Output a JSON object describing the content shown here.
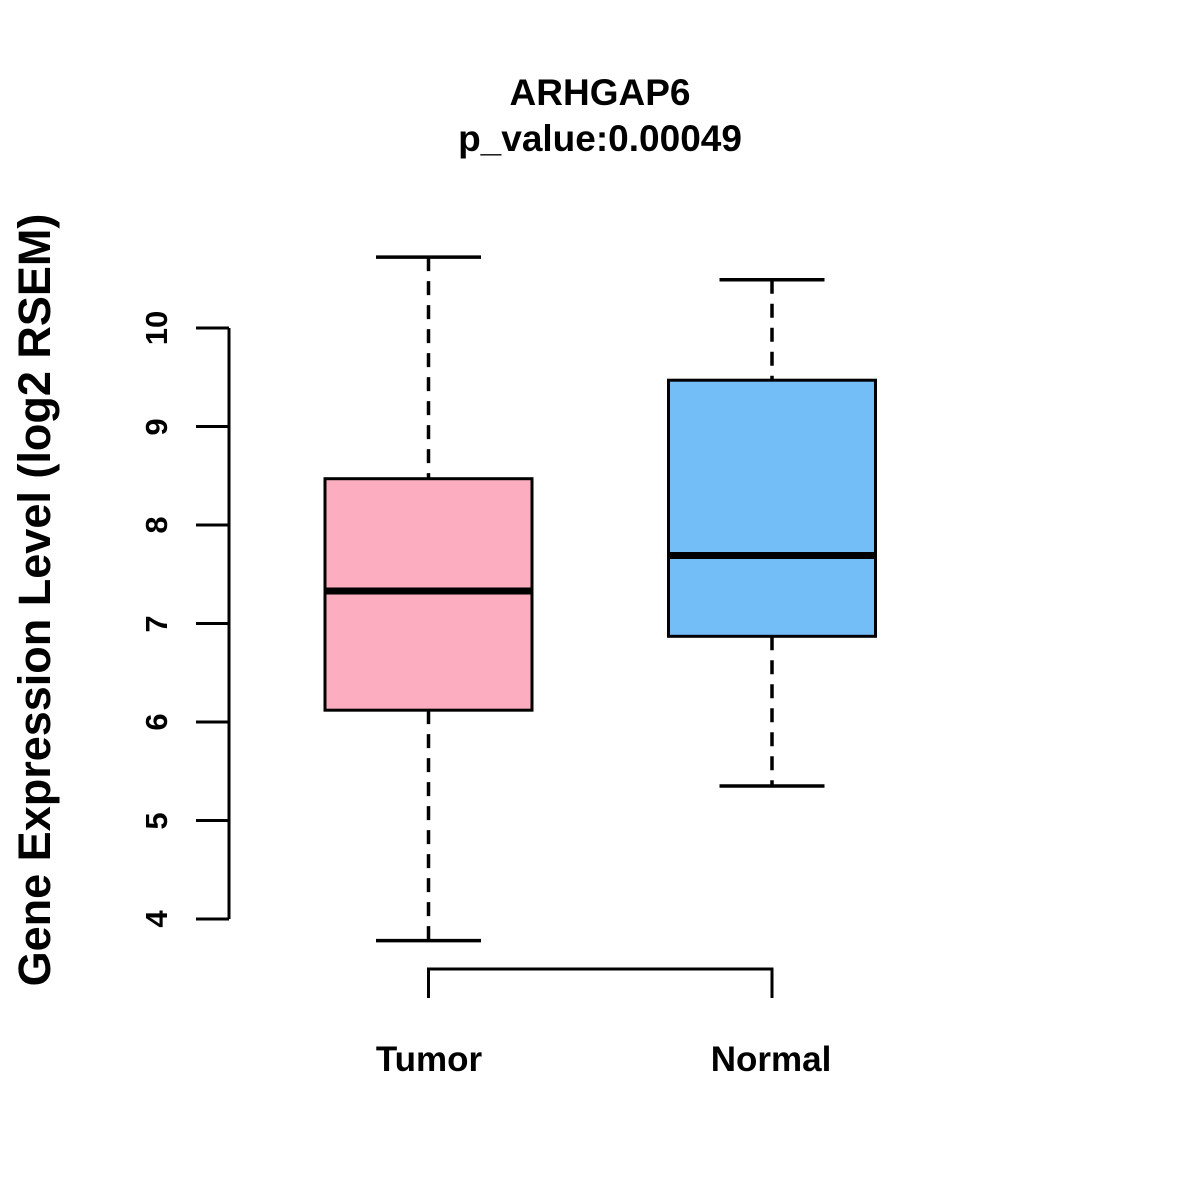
{
  "title": "ARHGAP6",
  "subtitle": "p_value:0.00049",
  "chart_data": {
    "type": "boxplot",
    "title": "ARHGAP6",
    "subtitle": "p_value:0.00049",
    "ylabel": "Gene Expression Level (log2 RSEM)",
    "xlabel": "",
    "categories": [
      "Tumor",
      "Normal"
    ],
    "yticks": [
      4,
      5,
      6,
      7,
      8,
      9,
      10
    ],
    "ylim": [
      3.6,
      10.9
    ],
    "grid": false,
    "line_color": "#000000",
    "background_color": "#FFFFFF",
    "series": [
      {
        "name": "Tumor",
        "lower_whisker": 3.78,
        "q1": 6.12,
        "median": 7.33,
        "q3": 8.47,
        "upper_whisker": 10.72,
        "fill": "#FCADC0"
      },
      {
        "name": "Normal",
        "lower_whisker": 5.35,
        "q1": 6.87,
        "median": 7.69,
        "q3": 9.47,
        "upper_whisker": 10.49,
        "fill": "#74BEF8"
      }
    ]
  }
}
